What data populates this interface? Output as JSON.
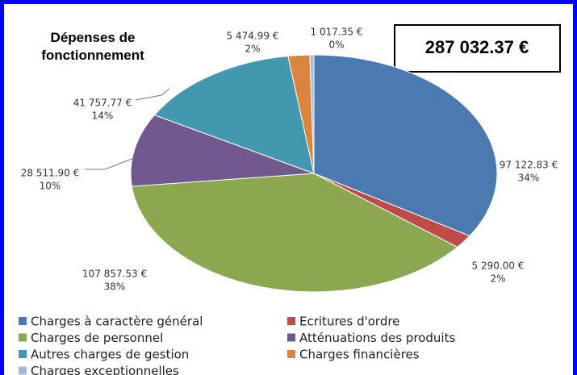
{
  "chart_data": {
    "type": "pie",
    "title": "Dépenses de fonctionnement",
    "total_label": "287 032.37 €",
    "categories": [
      "Charges à caractère général",
      "Ecritures d'ordre",
      "Charges de personnel",
      "Atténuations des produits",
      "Autres charges de gestion",
      "Charges financières",
      "Charges exceptionnelles"
    ],
    "values": [
      97122.83,
      5290.0,
      107857.53,
      28511.9,
      41757.77,
      5474.99,
      1017.35
    ],
    "value_labels": [
      "97 122.83 €",
      "5 290.00 €",
      "107 857.53 €",
      "28 511.90 €",
      "41 757.77 €",
      "5 474.99 €",
      "1 017.35 €"
    ],
    "percent_labels": [
      "34%",
      "2%",
      "38%",
      "10%",
      "14%",
      "2%",
      "0%"
    ],
    "colors": [
      "#4a7ab0",
      "#be4b48",
      "#8ba750",
      "#71588f",
      "#4298af",
      "#db843d",
      "#a4b8d8"
    ],
    "legend": "bottom"
  }
}
